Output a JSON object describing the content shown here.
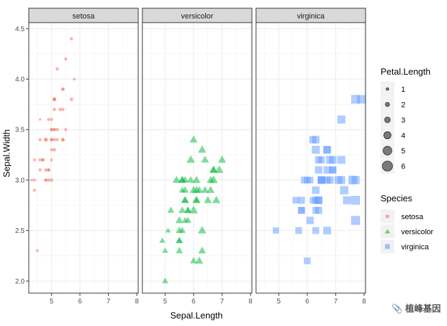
{
  "chart_data": {
    "type": "scatter",
    "facets": [
      "setosa",
      "versicolor",
      "virginica"
    ],
    "xlabel": "Sepal.Length",
    "ylabel": "Sepal.Width",
    "xlim": [
      4.2,
      8.05
    ],
    "ylim": [
      1.88,
      4.56
    ],
    "xticks": [
      5,
      6,
      7,
      8
    ],
    "yticks": [
      2.0,
      2.5,
      3.0,
      3.5,
      4.0,
      4.5
    ],
    "ytick_labels": [
      "2.0",
      "2.5",
      "3.0",
      "3.5",
      "4.0",
      "4.5"
    ],
    "xtick_labels": [
      "5",
      "6",
      "7",
      "8"
    ],
    "size_legend": {
      "title": "Petal.Length",
      "values": [
        1,
        2,
        3,
        4,
        5,
        6
      ],
      "labels": [
        "1",
        "2",
        "3",
        "4",
        "5",
        "6"
      ]
    },
    "color_legend": {
      "title": "Species",
      "items": [
        {
          "label": "setosa",
          "color": "#F8766D",
          "shape": "circle"
        },
        {
          "label": "versicolor",
          "color": "#00BA38",
          "shape": "triangle"
        },
        {
          "label": "virginica",
          "color": "#619CFF",
          "shape": "square"
        }
      ]
    },
    "series": [
      {
        "name": "setosa",
        "color": "#F8766D",
        "shape": "circle",
        "points": [
          [
            5.1,
            3.5,
            1.4
          ],
          [
            4.9,
            3.0,
            1.4
          ],
          [
            4.7,
            3.2,
            1.3
          ],
          [
            4.6,
            3.1,
            1.5
          ],
          [
            5.0,
            3.6,
            1.4
          ],
          [
            5.4,
            3.9,
            1.7
          ],
          [
            4.6,
            3.4,
            1.4
          ],
          [
            5.0,
            3.4,
            1.5
          ],
          [
            4.4,
            2.9,
            1.4
          ],
          [
            4.9,
            3.1,
            1.5
          ],
          [
            5.4,
            3.7,
            1.5
          ],
          [
            4.8,
            3.4,
            1.6
          ],
          [
            4.8,
            3.0,
            1.4
          ],
          [
            4.3,
            3.0,
            1.1
          ],
          [
            5.8,
            4.0,
            1.2
          ],
          [
            5.7,
            4.4,
            1.5
          ],
          [
            5.4,
            3.9,
            1.3
          ],
          [
            5.1,
            3.5,
            1.4
          ],
          [
            5.7,
            3.8,
            1.7
          ],
          [
            5.1,
            3.8,
            1.5
          ],
          [
            5.4,
            3.4,
            1.7
          ],
          [
            5.1,
            3.7,
            1.5
          ],
          [
            4.6,
            3.6,
            1.0
          ],
          [
            5.1,
            3.3,
            1.7
          ],
          [
            4.8,
            3.4,
            1.9
          ],
          [
            5.0,
            3.0,
            1.6
          ],
          [
            5.0,
            3.4,
            1.6
          ],
          [
            5.2,
            3.5,
            1.5
          ],
          [
            5.2,
            3.4,
            1.4
          ],
          [
            4.7,
            3.2,
            1.6
          ],
          [
            4.8,
            3.1,
            1.6
          ],
          [
            5.4,
            3.4,
            1.5
          ],
          [
            5.2,
            4.1,
            1.5
          ],
          [
            5.5,
            4.2,
            1.4
          ],
          [
            4.9,
            3.1,
            1.5
          ],
          [
            5.0,
            3.2,
            1.2
          ],
          [
            5.5,
            3.5,
            1.3
          ],
          [
            4.9,
            3.6,
            1.4
          ],
          [
            4.4,
            3.0,
            1.3
          ],
          [
            5.1,
            3.4,
            1.5
          ],
          [
            5.0,
            3.5,
            1.3
          ],
          [
            4.5,
            2.3,
            1.3
          ],
          [
            4.4,
            3.2,
            1.3
          ],
          [
            5.0,
            3.5,
            1.6
          ],
          [
            5.1,
            3.8,
            1.9
          ],
          [
            4.8,
            3.0,
            1.4
          ],
          [
            5.1,
            3.8,
            1.6
          ],
          [
            4.6,
            3.2,
            1.4
          ],
          [
            5.3,
            3.7,
            1.5
          ],
          [
            5.0,
            3.3,
            1.4
          ]
        ]
      },
      {
        "name": "versicolor",
        "color": "#00BA38",
        "shape": "triangle",
        "points": [
          [
            7.0,
            3.2,
            4.7
          ],
          [
            6.4,
            3.2,
            4.5
          ],
          [
            6.9,
            3.1,
            4.9
          ],
          [
            5.5,
            2.3,
            4.0
          ],
          [
            6.5,
            2.8,
            4.6
          ],
          [
            5.7,
            2.8,
            4.5
          ],
          [
            6.3,
            3.3,
            4.7
          ],
          [
            4.9,
            2.4,
            3.3
          ],
          [
            6.6,
            2.9,
            4.6
          ],
          [
            5.2,
            2.7,
            3.9
          ],
          [
            5.0,
            2.0,
            3.5
          ],
          [
            5.9,
            3.0,
            4.2
          ],
          [
            6.0,
            2.2,
            4.0
          ],
          [
            6.1,
            2.9,
            4.7
          ],
          [
            5.6,
            2.9,
            3.6
          ],
          [
            6.7,
            3.1,
            4.4
          ],
          [
            5.6,
            3.0,
            4.5
          ],
          [
            5.8,
            2.7,
            4.1
          ],
          [
            6.2,
            2.2,
            4.5
          ],
          [
            5.6,
            2.5,
            3.9
          ],
          [
            5.9,
            3.2,
            4.8
          ],
          [
            6.1,
            2.8,
            4.0
          ],
          [
            6.3,
            2.5,
            4.9
          ],
          [
            6.1,
            2.8,
            4.7
          ],
          [
            6.4,
            2.9,
            4.3
          ],
          [
            6.6,
            3.0,
            4.4
          ],
          [
            6.8,
            2.8,
            4.8
          ],
          [
            6.7,
            3.0,
            5.0
          ],
          [
            6.0,
            2.9,
            4.5
          ],
          [
            5.7,
            2.6,
            3.5
          ],
          [
            5.5,
            2.4,
            3.8
          ],
          [
            5.5,
            2.4,
            3.7
          ],
          [
            5.8,
            2.7,
            3.9
          ],
          [
            6.0,
            2.7,
            5.1
          ],
          [
            5.4,
            3.0,
            4.5
          ],
          [
            6.0,
            3.4,
            4.5
          ],
          [
            6.7,
            3.1,
            4.7
          ],
          [
            6.3,
            2.3,
            4.4
          ],
          [
            5.6,
            3.0,
            4.1
          ],
          [
            5.5,
            2.5,
            4.0
          ],
          [
            5.5,
            2.6,
            4.4
          ],
          [
            6.1,
            3.0,
            4.6
          ],
          [
            5.8,
            2.6,
            4.0
          ],
          [
            5.0,
            2.3,
            3.3
          ],
          [
            5.6,
            2.7,
            4.2
          ],
          [
            5.7,
            3.0,
            4.2
          ],
          [
            5.7,
            2.9,
            4.2
          ],
          [
            6.2,
            2.9,
            4.3
          ],
          [
            5.1,
            2.5,
            3.0
          ],
          [
            5.7,
            2.8,
            4.1
          ]
        ]
      },
      {
        "name": "virginica",
        "color": "#619CFF",
        "shape": "square",
        "points": [
          [
            6.3,
            3.3,
            6.0
          ],
          [
            5.8,
            2.7,
            5.1
          ],
          [
            7.1,
            3.0,
            5.9
          ],
          [
            6.3,
            2.9,
            5.6
          ],
          [
            6.5,
            3.0,
            5.8
          ],
          [
            7.6,
            3.0,
            6.6
          ],
          [
            4.9,
            2.5,
            4.5
          ],
          [
            7.3,
            2.9,
            6.3
          ],
          [
            6.7,
            2.5,
            5.8
          ],
          [
            7.2,
            3.6,
            6.1
          ],
          [
            6.5,
            3.2,
            5.1
          ],
          [
            6.4,
            2.7,
            5.3
          ],
          [
            6.8,
            3.0,
            5.5
          ],
          [
            5.7,
            2.5,
            5.0
          ],
          [
            5.8,
            2.8,
            5.1
          ],
          [
            6.4,
            3.2,
            5.3
          ],
          [
            6.5,
            3.0,
            5.5
          ],
          [
            7.7,
            3.8,
            6.7
          ],
          [
            7.7,
            2.6,
            6.9
          ],
          [
            6.0,
            2.2,
            5.0
          ],
          [
            6.9,
            3.2,
            5.7
          ],
          [
            5.6,
            2.8,
            4.9
          ],
          [
            7.7,
            2.8,
            6.7
          ],
          [
            6.3,
            2.7,
            4.9
          ],
          [
            6.7,
            3.3,
            5.7
          ],
          [
            7.2,
            3.2,
            6.0
          ],
          [
            6.2,
            2.8,
            4.8
          ],
          [
            6.1,
            3.0,
            4.9
          ],
          [
            6.4,
            2.8,
            5.6
          ],
          [
            7.2,
            3.0,
            5.8
          ],
          [
            7.4,
            2.8,
            6.1
          ],
          [
            7.9,
            3.8,
            6.4
          ],
          [
            6.4,
            2.8,
            5.6
          ],
          [
            6.3,
            2.8,
            5.1
          ],
          [
            6.1,
            2.6,
            5.6
          ],
          [
            7.7,
            3.0,
            6.1
          ],
          [
            6.3,
            3.4,
            5.6
          ],
          [
            6.4,
            3.1,
            5.5
          ],
          [
            6.0,
            3.0,
            4.8
          ],
          [
            6.9,
            3.1,
            5.4
          ],
          [
            6.7,
            3.1,
            5.6
          ],
          [
            6.9,
            3.1,
            5.1
          ],
          [
            5.8,
            2.7,
            5.1
          ],
          [
            6.8,
            3.2,
            5.9
          ],
          [
            6.7,
            3.3,
            5.7
          ],
          [
            6.7,
            3.0,
            5.2
          ],
          [
            6.3,
            2.5,
            5.0
          ],
          [
            6.5,
            3.0,
            5.2
          ],
          [
            6.2,
            3.4,
            5.4
          ],
          [
            5.9,
            3.0,
            5.1
          ]
        ]
      }
    ]
  },
  "watermark": "📎 植峰基因"
}
